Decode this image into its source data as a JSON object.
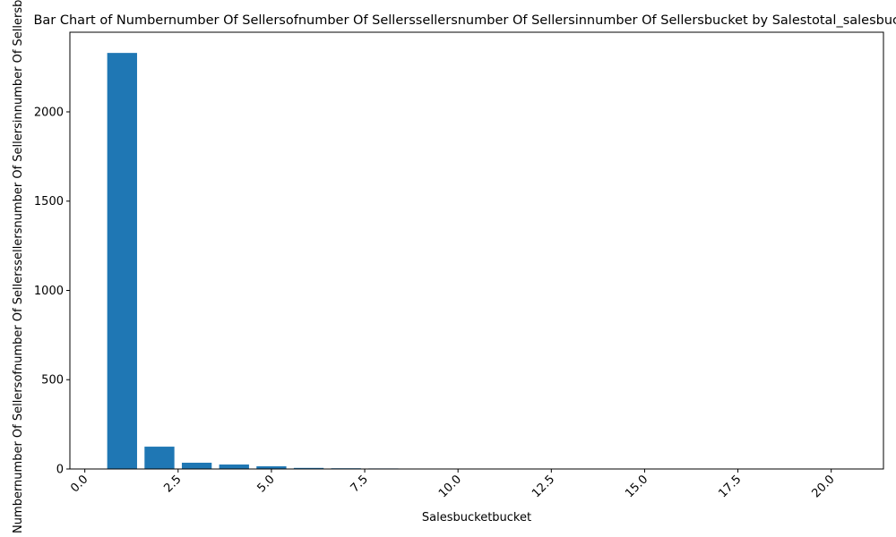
{
  "chart_data": {
    "type": "bar",
    "title": "Bar Chart of Numbernumber Of Sellersofnumber Of Sellerssellersnumber Of Sellersinnumber Of Sellersbucket by Salestotal_salesbucket",
    "xlabel": "Salesbucketbucket",
    "ylabel": "Numbernumber Of Sellersofnumber Of Sellerssellersnumber Of Sellersinnumber Of Sellersbucket",
    "x": [
      1,
      2,
      3,
      4,
      5,
      6,
      7,
      8,
      9,
      10,
      11,
      12,
      13,
      14,
      15,
      16,
      17,
      18,
      19,
      20
    ],
    "values": [
      2330,
      125,
      35,
      25,
      15,
      6,
      4,
      3,
      1,
      1,
      0,
      0,
      1,
      0,
      0,
      0,
      0,
      1,
      0,
      1
    ],
    "xlim": [
      -0.4,
      21.4
    ],
    "ylim": [
      0,
      2446
    ],
    "xticks": [
      0.0,
      2.5,
      5.0,
      7.5,
      10.0,
      12.5,
      15.0,
      17.5,
      20.0
    ],
    "xtick_labels": [
      "0.0",
      "2.5",
      "5.0",
      "7.5",
      "10.0",
      "12.5",
      "15.0",
      "17.5",
      "20.0"
    ],
    "yticks": [
      0,
      500,
      1000,
      1500,
      2000
    ],
    "ytick_labels": [
      "0",
      "500",
      "1000",
      "1500",
      "2000"
    ],
    "bar_color": "#1f77b4",
    "grid": false,
    "legend": "none"
  }
}
